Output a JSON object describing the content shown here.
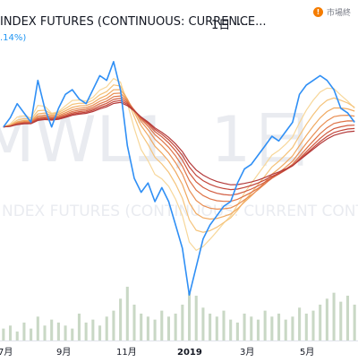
{
  "header": {
    "symbol_title": "INDEX FUTURES (CONTINUOUS: CURREN...",
    "interval": "1日",
    "exchange": "ICE...",
    "status_icon": "warning-icon",
    "status_glyph": "!",
    "status_color": "#f57c00",
    "market_status": "市場終",
    "change_pct": ".14%)"
  },
  "watermark": {
    "symbol": "MWL1, 1日",
    "description": "NDEX FUTURES (CONTINUOUS: CURRENT CONTRACT IN F"
  },
  "x_axis": {
    "labels": [
      "7月",
      "9月",
      "11月",
      "2019",
      "3月",
      "5月"
    ]
  },
  "colors": {
    "price_line": "#2f8ff5",
    "ribbon": [
      "#f7d79a",
      "#f5c37a",
      "#f0a960",
      "#e98e52",
      "#de7347",
      "#d15a3e",
      "#c2453a",
      "#b33939"
    ],
    "volume": "#c9d8c5"
  },
  "chart_data": {
    "type": "line",
    "title": "",
    "x": [
      "2018-06-22",
      "2018-06-29",
      "2018-07-06",
      "2018-07-13",
      "2018-07-20",
      "2018-07-27",
      "2018-08-03",
      "2018-08-10",
      "2018-08-17",
      "2018-08-24",
      "2018-08-31",
      "2018-09-07",
      "2018-09-14",
      "2018-09-21",
      "2018-09-28",
      "2018-10-05",
      "2018-10-12",
      "2018-10-19",
      "2018-10-26",
      "2018-11-02",
      "2018-11-09",
      "2018-11-16",
      "2018-11-23",
      "2018-11-30",
      "2018-12-07",
      "2018-12-14",
      "2018-12-21",
      "2018-12-28",
      "2019-01-04",
      "2019-01-11",
      "2019-01-18",
      "2019-01-25",
      "2019-02-01",
      "2019-02-08",
      "2019-02-15",
      "2019-02-22",
      "2019-03-01",
      "2019-03-08",
      "2019-03-15",
      "2019-03-22",
      "2019-03-29",
      "2019-04-05",
      "2019-04-12",
      "2019-04-19",
      "2019-04-26",
      "2019-05-03",
      "2019-05-10",
      "2019-05-17",
      "2019-05-24",
      "2019-05-31",
      "2019-06-07",
      "2019-06-14"
    ],
    "series": [
      {
        "values": [
          110,
          120,
          135,
          125,
          115,
          160,
          130,
          110,
          130,
          145,
          150,
          140,
          135,
          150,
          165,
          160,
          180,
          150,
          90,
          55,
          40,
          50,
          30,
          45,
          30,
          5,
          -20,
          -70,
          -40,
          -10,
          5,
          15,
          25,
          30,
          50,
          65,
          70,
          80,
          90,
          100,
          95,
          105,
          115,
          145,
          155,
          160,
          165,
          160,
          150,
          130,
          125,
          115
        ]
      }
    ],
    "ribbon_ema_periods": [
      5,
      8,
      11,
      14,
      17,
      20,
      23,
      26
    ],
    "volume": [
      4,
      5,
      3,
      6,
      4,
      8,
      5,
      7,
      6,
      5,
      4,
      9,
      6,
      7,
      5,
      8,
      10,
      14,
      18,
      12,
      9,
      8,
      7,
      10,
      8,
      9,
      12,
      16,
      15,
      11,
      9,
      8,
      10,
      7,
      6,
      9,
      8,
      7,
      10,
      8,
      9,
      7,
      8,
      11,
      9,
      10,
      12,
      14,
      16,
      13,
      15,
      12
    ],
    "grid": false
  }
}
